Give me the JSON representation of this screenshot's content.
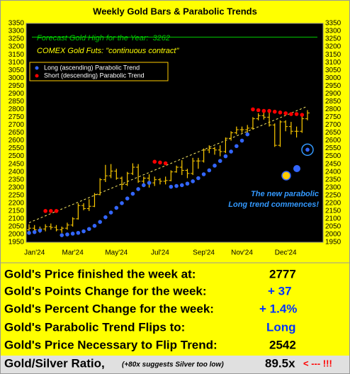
{
  "chart_data": {
    "type": "ohlc",
    "title": "Weekly Gold Bars & Parabolic Trends",
    "subtitle": "COMEX Gold Futs: \"continuous contract\"",
    "forecast": {
      "label": "Forecast Gold High for the Year:",
      "value": 3262,
      "color": "#00cc00"
    },
    "annotation": [
      "The new parabolic",
      "Long trend commences!"
    ],
    "categories": [
      null,
      "Jan'24",
      null,
      null,
      null,
      null,
      null,
      null,
      "Mar'24",
      null,
      null,
      null,
      null,
      null,
      null,
      null,
      "May'24",
      null,
      null,
      null,
      null,
      null,
      null,
      null,
      "Jul'24",
      null,
      null,
      null,
      null,
      null,
      null,
      null,
      "Sep'24",
      null,
      null,
      null,
      null,
      null,
      null,
      "Nov'24",
      null,
      null,
      null,
      null,
      null,
      null,
      null,
      "Dec'24",
      null,
      null,
      null,
      null
    ],
    "bars": {
      "color": "#ffcc00",
      "open": [
        2030,
        2040,
        2030,
        2035,
        2050,
        2045,
        2030,
        2040,
        2060,
        2100,
        2185,
        2165,
        2180,
        2255,
        2350,
        2375,
        2405,
        2360,
        2320,
        2390,
        2430,
        2340,
        2360,
        2330,
        2350,
        2340,
        2345,
        2400,
        2430,
        2410,
        2390,
        2470,
        2470,
        2540,
        2550,
        2540,
        2530,
        2615,
        2650,
        2670,
        2670,
        2680,
        2740,
        2760,
        2750,
        2700,
        2570,
        2720,
        2690,
        2660,
        2660,
        2740
      ],
      "high": [
        2065,
        2060,
        2050,
        2065,
        2070,
        2060,
        2050,
        2075,
        2110,
        2200,
        2200,
        2225,
        2265,
        2360,
        2445,
        2450,
        2420,
        2370,
        2400,
        2455,
        2450,
        2370,
        2385,
        2370,
        2360,
        2370,
        2410,
        2440,
        2475,
        2420,
        2490,
        2490,
        2550,
        2570,
        2560,
        2570,
        2620,
        2660,
        2690,
        2690,
        2700,
        2750,
        2775,
        2800,
        2790,
        2710,
        2730,
        2730,
        2720,
        2690,
        2760,
        2795
      ],
      "low": [
        2005,
        2015,
        2010,
        2020,
        2030,
        2020,
        2010,
        2030,
        2050,
        2095,
        2155,
        2150,
        2175,
        2250,
        2335,
        2360,
        2350,
        2285,
        2310,
        2380,
        2330,
        2320,
        2300,
        2310,
        2320,
        2320,
        2340,
        2395,
        2380,
        2360,
        2380,
        2420,
        2460,
        2520,
        2510,
        2500,
        2520,
        2600,
        2640,
        2650,
        2650,
        2670,
        2730,
        2735,
        2690,
        2560,
        2560,
        2660,
        2640,
        2620,
        2650,
        2730
      ],
      "close": [
        2040,
        2030,
        2035,
        2050,
        2045,
        2030,
        2040,
        2060,
        2100,
        2185,
        2165,
        2180,
        2255,
        2350,
        2375,
        2405,
        2360,
        2320,
        2390,
        2430,
        2340,
        2360,
        2330,
        2350,
        2340,
        2345,
        2400,
        2430,
        2410,
        2390,
        2470,
        2470,
        2540,
        2550,
        2540,
        2530,
        2615,
        2650,
        2670,
        2670,
        2680,
        2740,
        2760,
        2750,
        2700,
        2570,
        2720,
        2690,
        2660,
        2660,
        2740,
        2777
      ]
    },
    "series": [
      {
        "name": "Long (ascending) Parabolic Trend",
        "color": "#3366ff",
        "values": [
          2010,
          2015,
          2025,
          null,
          null,
          null,
          1995,
          2000,
          2005,
          2010,
          2020,
          2035,
          2055,
          2080,
          2110,
          2140,
          2170,
          2200,
          2230,
          2260,
          2290,
          2315,
          2330,
          null,
          null,
          null,
          2305,
          2310,
          2315,
          2325,
          2340,
          2360,
          2385,
          2410,
          2440,
          2470,
          2500,
          2530,
          2565,
          2600,
          2640,
          null,
          null,
          null,
          null,
          null,
          null,
          null,
          null,
          null,
          null,
          2542
        ]
      },
      {
        "name": "Short (descending) Parabolic Trend",
        "color": "#ff0000",
        "values": [
          null,
          null,
          null,
          2150,
          2150,
          2150,
          null,
          null,
          null,
          null,
          null,
          null,
          null,
          null,
          null,
          null,
          null,
          null,
          null,
          null,
          null,
          null,
          null,
          2465,
          2460,
          2455,
          null,
          null,
          null,
          null,
          null,
          null,
          null,
          null,
          null,
          null,
          null,
          null,
          null,
          null,
          null,
          2800,
          2795,
          2790,
          2790,
          2785,
          2780,
          2775,
          2770,
          2770,
          2765,
          null
        ]
      }
    ],
    "trend_line": {
      "color": "#ffee66",
      "values": [
        2075,
        2820
      ]
    },
    "ylim": [
      1950,
      3350
    ],
    "yticks": [
      1950,
      2000,
      2050,
      2100,
      2150,
      2200,
      2250,
      2300,
      2350,
      2400,
      2450,
      2500,
      2550,
      2600,
      2650,
      2700,
      2750,
      2800,
      2850,
      2900,
      2950,
      3000,
      3050,
      3100,
      3150,
      3200,
      3250,
      3300,
      3350
    ]
  },
  "table": {
    "rows": [
      {
        "label": "Gold's Price finished the week at:",
        "value": "2777"
      },
      {
        "label": "Gold's Points Change for the week:",
        "value": "+ 37"
      },
      {
        "label": "Gold's Percent Change for the week:",
        "value": "+ 1.4%"
      },
      {
        "label": "Gold's Parabolic Trend Flips to:",
        "value": "Long"
      },
      {
        "label": "Gold's Price Necessary to Flip Trend:",
        "value": "2542"
      },
      {
        "label": "Gold/Silver Ratio,",
        "note": "(+80x suggests Silver too low)",
        "value": "89.5x",
        "flag": "< --- !!!"
      }
    ]
  }
}
